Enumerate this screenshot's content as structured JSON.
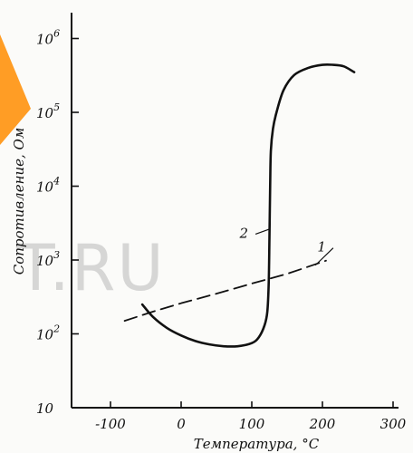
{
  "chart_data": {
    "type": "line",
    "title": "",
    "xlabel": "Температура, °C",
    "ylabel": "Сопротивление, Ом",
    "x_axis": {
      "range": [
        -150,
        300
      ],
      "ticks": [
        -100,
        0,
        100,
        200,
        300
      ],
      "tick_labels": [
        "-100",
        "0",
        "100",
        "200",
        "300"
      ]
    },
    "y_axis": {
      "scale": "log",
      "range": [
        10,
        1000000
      ],
      "ticks": [
        10,
        100,
        1000,
        10000,
        100000,
        1000000
      ],
      "tick_labels": [
        {
          "base": "10",
          "exp": ""
        },
        {
          "base": "10",
          "exp": "2"
        },
        {
          "base": "10",
          "exp": "3"
        },
        {
          "base": "10",
          "exp": "4"
        },
        {
          "base": "10",
          "exp": "5"
        },
        {
          "base": "10",
          "exp": "6"
        }
      ]
    },
    "grid": false,
    "legend": "none",
    "series": [
      {
        "label": "1",
        "style": "dashed",
        "points": [
          [
            -80,
            150
          ],
          [
            -40,
            200
          ],
          [
            0,
            260
          ],
          [
            50,
            350
          ],
          [
            100,
            480
          ],
          [
            150,
            650
          ],
          [
            205,
            980
          ]
        ]
      },
      {
        "label": "2",
        "style": "solid",
        "points": [
          [
            -55,
            250
          ],
          [
            -40,
            170
          ],
          [
            -20,
            120
          ],
          [
            0,
            95
          ],
          [
            20,
            80
          ],
          [
            40,
            72
          ],
          [
            60,
            68
          ],
          [
            80,
            68
          ],
          [
            100,
            75
          ],
          [
            110,
            90
          ],
          [
            118,
            130
          ],
          [
            122,
            200
          ],
          [
            124,
            500
          ],
          [
            125,
            2000
          ],
          [
            126,
            10000
          ],
          [
            127,
            30000
          ],
          [
            130,
            60000
          ],
          [
            135,
            100000
          ],
          [
            145,
            200000
          ],
          [
            160,
            320000
          ],
          [
            180,
            400000
          ],
          [
            200,
            440000
          ],
          [
            215,
            440000
          ],
          [
            230,
            420000
          ],
          [
            245,
            350000
          ]
        ]
      }
    ],
    "colors": {
      "line": "#111111",
      "watermark": "#b9b9b9",
      "accent": "#ff8c00"
    },
    "watermark_text": "T.RU"
  }
}
